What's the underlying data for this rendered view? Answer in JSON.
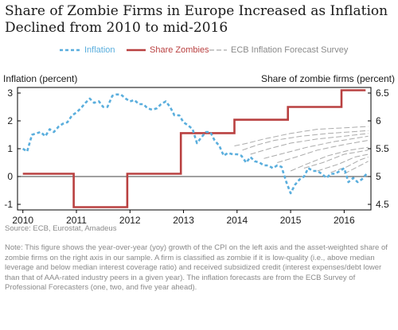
{
  "title": "Share of Zombie Firms in Europe Increased as Inflation Declined from 2010 to mid-2016",
  "source": "Source: ECB, Eurostat, Amadeus",
  "note": "Note: This figure shows the year-over-year (yoy) growth of the CPI on the left axis and the asset-weighted share of zombie firms on the right axis in our sample. A firm is classified as zombie if it is low-quality (i.e., above median leverage and below median interest coverage ratio) and received subsidized credit (interest expenses/debt lower than that of AAA-rated industry peers in a given year). The inflation forecasts are from the ECB Survey of Professional Forecasters (one, two, and five year ahead).",
  "colors": {
    "inflation": "#5aaedd",
    "zombies": "#b94040",
    "forecast": "#aaaaaa"
  },
  "chart_data": {
    "type": "line",
    "title": "Share of Zombie Firms in Europe Increased as Inflation Declined from 2010 to mid-2016",
    "left_axis": {
      "label": "Inflation (percent)",
      "ylim": [
        -1.2,
        3.2
      ],
      "ticks": [
        "-1",
        "0",
        "1",
        "2",
        "3"
      ]
    },
    "right_axis": {
      "label": "Share of zombie firms (percent)",
      "ylim": [
        4.4,
        6.6
      ],
      "ticks": [
        "4.5",
        "5",
        "5.5",
        "6",
        "6.5"
      ]
    },
    "xlim": [
      2009.9,
      2016.5
    ],
    "x_ticks": [
      "2010",
      "2011",
      "2012",
      "2013",
      "2014",
      "2015",
      "2016"
    ],
    "legend_position": "top",
    "series": [
      {
        "name": "Inflation",
        "axis": "left",
        "style": "dashed",
        "x": [
          2010.0,
          2010.08,
          2010.17,
          2010.25,
          2010.33,
          2010.42,
          2010.5,
          2010.58,
          2010.67,
          2010.75,
          2010.83,
          2010.92,
          2011.0,
          2011.08,
          2011.17,
          2011.25,
          2011.33,
          2011.42,
          2011.5,
          2011.58,
          2011.67,
          2011.75,
          2011.83,
          2011.92,
          2012.0,
          2012.08,
          2012.17,
          2012.25,
          2012.33,
          2012.42,
          2012.5,
          2012.58,
          2012.67,
          2012.75,
          2012.83,
          2012.92,
          2013.0,
          2013.08,
          2013.17,
          2013.25,
          2013.33,
          2013.42,
          2013.5,
          2013.58,
          2013.67,
          2013.75,
          2013.83,
          2013.92,
          2014.0,
          2014.08,
          2014.17,
          2014.25,
          2014.33,
          2014.42,
          2014.5,
          2014.58,
          2014.67,
          2014.75,
          2014.83,
          2014.92,
          2015.0,
          2015.08,
          2015.17,
          2015.25,
          2015.33,
          2015.42,
          2015.5,
          2015.58,
          2015.67,
          2015.75,
          2015.83,
          2015.92,
          2016.0,
          2016.08,
          2016.17,
          2016.25,
          2016.33,
          2016.42
        ],
        "values": [
          1.0,
          0.9,
          1.5,
          1.55,
          1.6,
          1.45,
          1.7,
          1.6,
          1.8,
          1.9,
          1.95,
          2.2,
          2.3,
          2.45,
          2.65,
          2.8,
          2.65,
          2.7,
          2.5,
          2.5,
          2.9,
          2.95,
          2.95,
          2.8,
          2.7,
          2.75,
          2.6,
          2.6,
          2.45,
          2.4,
          2.45,
          2.6,
          2.7,
          2.5,
          2.2,
          2.2,
          1.95,
          1.85,
          1.7,
          1.2,
          1.4,
          1.6,
          1.6,
          1.3,
          1.1,
          0.75,
          0.85,
          0.8,
          0.8,
          0.75,
          0.5,
          0.7,
          0.55,
          0.5,
          0.4,
          0.4,
          0.3,
          0.4,
          0.35,
          -0.2,
          -0.6,
          -0.3,
          -0.1,
          0.0,
          0.3,
          0.2,
          0.2,
          0.1,
          -0.05,
          0.1,
          0.1,
          0.2,
          0.3,
          -0.2,
          -0.05,
          -0.2,
          -0.1,
          0.1
        ]
      },
      {
        "name": "Share Zombies",
        "axis": "right",
        "style": "step",
        "x": [
          2010.0,
          2010.95,
          2010.95,
          2011.95,
          2011.95,
          2012.95,
          2012.95,
          2013.95,
          2013.95,
          2014.95,
          2014.95,
          2015.95,
          2015.95,
          2016.4
        ],
        "values": [
          5.05,
          5.05,
          4.45,
          4.45,
          5.05,
          5.05,
          5.78,
          5.78,
          6.02,
          6.02,
          6.25,
          6.25,
          6.55,
          6.55
        ]
      },
      {
        "name": "ECB Inflation Forecast Survey",
        "axis": "left",
        "style": "dashed",
        "paths": [
          {
            "x": [
              2013.95,
              2014.2,
              2014.5,
              2015.0,
              2015.5,
              2016.0,
              2016.45
            ],
            "values": [
              1.1,
              1.2,
              1.35,
              1.55,
              1.7,
              1.75,
              1.8
            ]
          },
          {
            "x": [
              2014.1,
              2014.4,
              2014.7,
              2015.2,
              2015.7,
              2016.45
            ],
            "values": [
              0.95,
              1.15,
              1.3,
              1.45,
              1.55,
              1.65
            ]
          },
          {
            "x": [
              2014.25,
              2014.6,
              2015.0,
              2015.5,
              2016.0,
              2016.45
            ],
            "values": [
              0.8,
              1.0,
              1.2,
              1.35,
              1.45,
              1.55
            ]
          },
          {
            "x": [
              2014.5,
              2014.9,
              2015.3,
              2015.8,
              2016.45
            ],
            "values": [
              0.65,
              0.85,
              1.05,
              1.25,
              1.45
            ]
          },
          {
            "x": [
              2014.75,
              2015.1,
              2015.5,
              2016.0,
              2016.45
            ],
            "values": [
              0.5,
              0.7,
              0.95,
              1.15,
              1.3
            ]
          },
          {
            "x": [
              2015.0,
              2015.3,
              2015.7,
              2016.1,
              2016.45
            ],
            "values": [
              0.2,
              0.45,
              0.75,
              0.95,
              1.05
            ]
          },
          {
            "x": [
              2015.25,
              2015.6,
              2016.0,
              2016.45
            ],
            "values": [
              0.3,
              0.5,
              0.8,
              0.95
            ]
          },
          {
            "x": [
              2015.5,
              2015.9,
              2016.2,
              2016.45
            ],
            "values": [
              0.2,
              0.45,
              0.7,
              0.8
            ]
          },
          {
            "x": [
              2015.75,
              2016.05,
              2016.3,
              2016.45
            ],
            "values": [
              0.15,
              0.35,
              0.6,
              0.7
            ]
          },
          {
            "x": [
              2016.0,
              2016.25,
              2016.45
            ],
            "values": [
              0.1,
              0.35,
              0.55
            ]
          }
        ]
      }
    ]
  }
}
